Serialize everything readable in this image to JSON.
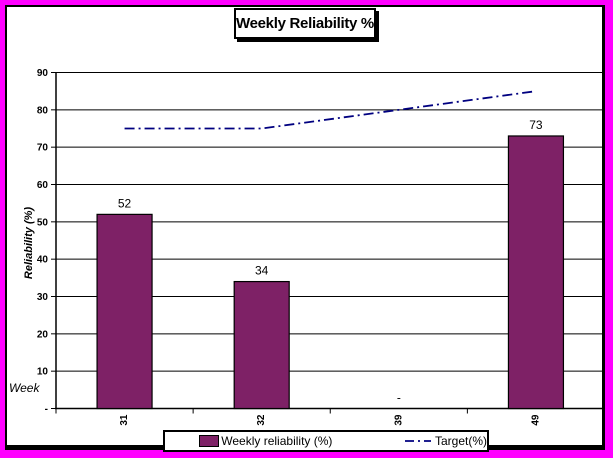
{
  "window": {
    "frame_border_color": "#FF00FF",
    "chart_background": "#FFFFFF"
  },
  "chart_data": {
    "type": "bar",
    "title": "Weekly Reliability %",
    "xlabel": "Week",
    "ylabel": "Reliability (%)",
    "categories": [
      "31",
      "32",
      "39",
      "49"
    ],
    "series": [
      {
        "name": "Weekly reliability (%)",
        "type": "bar",
        "values": [
          52,
          34,
          0,
          73
        ],
        "data_labels": [
          "52",
          "34",
          "-",
          "73"
        ],
        "color": "#7E2166"
      },
      {
        "name": "Target(%)",
        "type": "line",
        "values": [
          75,
          75,
          80,
          85
        ],
        "color": "#000080",
        "line_style": "dash-dot"
      }
    ],
    "ylim": [
      0,
      90
    ],
    "ytick_step": 10,
    "ytick_labels": [
      "-",
      "10",
      "20",
      "30",
      "40",
      "50",
      "60",
      "70",
      "80",
      "90"
    ],
    "grid": true,
    "legend_position": "bottom"
  }
}
